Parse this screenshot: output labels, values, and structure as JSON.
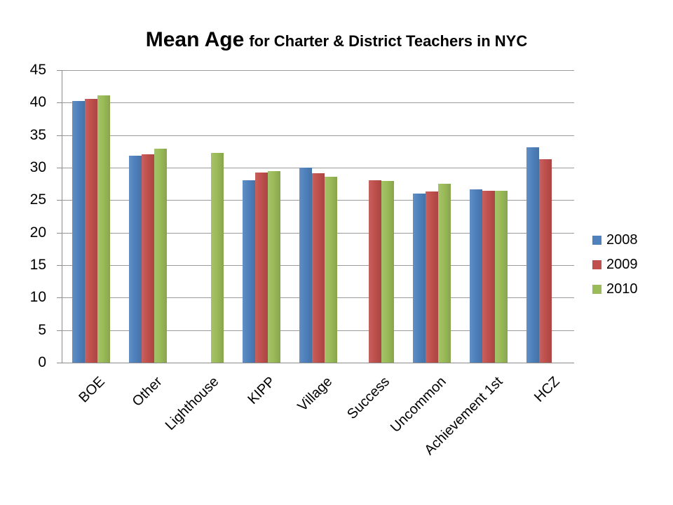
{
  "chart_data": {
    "type": "bar",
    "title": "Mean Age",
    "subtitle": "for Charter & District Teachers in NYC",
    "categories": [
      "BOE",
      "Other",
      "Lighthouse",
      "KIPP",
      "Village",
      "Success",
      "Uncommon",
      "Achievement 1st",
      "HCZ"
    ],
    "series": [
      {
        "name": "2008",
        "color": "#4F81BD",
        "values": [
          40.3,
          31.8,
          null,
          28.1,
          30.0,
          null,
          26.0,
          26.7,
          33.1
        ]
      },
      {
        "name": "2009",
        "color": "#C0504D",
        "values": [
          40.6,
          32.1,
          null,
          29.3,
          29.1,
          28.1,
          26.3,
          26.4,
          31.3
        ]
      },
      {
        "name": "2010",
        "color": "#9BBB59",
        "values": [
          41.1,
          32.9,
          32.3,
          29.5,
          28.6,
          28.0,
          27.5,
          26.4,
          null
        ]
      }
    ],
    "xlabel": "",
    "ylabel": "",
    "ylim": [
      0,
      45
    ],
    "yticks": [
      0,
      5,
      10,
      15,
      20,
      25,
      30,
      35,
      40,
      45
    ],
    "grid": true,
    "legend_position": "right",
    "colors": {
      "gridline": "#9A9A9A",
      "axis": "#8C8C8C",
      "text": "#000000",
      "background": "#FFFFFF"
    }
  }
}
